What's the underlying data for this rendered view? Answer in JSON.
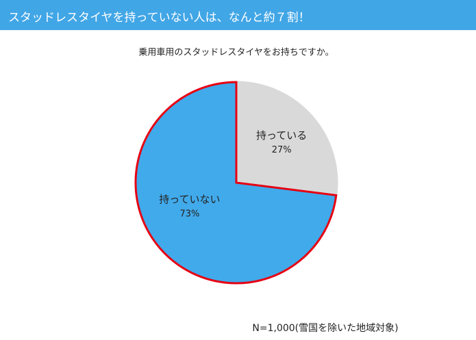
{
  "chart_data": {
    "type": "pie",
    "title": "スタッドレスタイヤを持っていない人は、なんと約７割！",
    "subtitle": "乗用車用のスタッドレスタイヤをお持ちですか。",
    "categories": [
      "持っている",
      "持っていない"
    ],
    "values": [
      27,
      73
    ],
    "value_labels": [
      "27%",
      "73%"
    ],
    "colors": [
      "#d9d9d9",
      "#41aaeb"
    ],
    "edge_colors": [
      "#d9d9d9",
      "#e60012"
    ],
    "note": "N=1,000(雪国を除いた地域対象)"
  }
}
